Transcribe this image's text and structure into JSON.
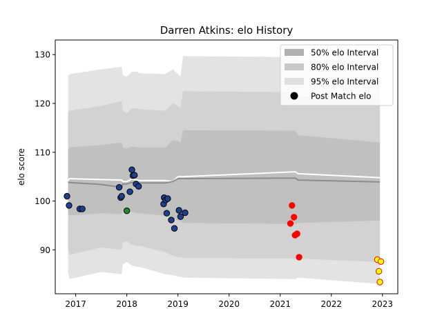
{
  "chart_data": {
    "type": "scatter",
    "title": "Darren Atkins: elo History",
    "xlabel": "",
    "ylabel": "elo score",
    "xlim": [
      2016.6,
      2023.3
    ],
    "ylim": [
      81,
      133
    ],
    "xticks": [
      {
        "value": 2017,
        "label": "2017"
      },
      {
        "value": 2018,
        "label": "2018"
      },
      {
        "value": 2019,
        "label": "2019"
      },
      {
        "value": 2020,
        "label": "2020"
      },
      {
        "value": 2021,
        "label": "2021"
      },
      {
        "value": 2022,
        "label": "2022"
      },
      {
        "value": 2023,
        "label": "2023"
      }
    ],
    "yticks": [
      {
        "value": 90,
        "label": "90"
      },
      {
        "value": 100,
        "label": "100"
      },
      {
        "value": 110,
        "label": "110"
      },
      {
        "value": 120,
        "label": "120"
      },
      {
        "value": 130,
        "label": "130"
      }
    ],
    "grid": false,
    "legend_position": "top-right",
    "legend": [
      {
        "label": "50% elo Interval",
        "kind": "patch",
        "color": "#b0b0b0"
      },
      {
        "label": "80% elo Interval",
        "kind": "patch",
        "color": "#c8c8c8"
      },
      {
        "label": "95% elo Interval",
        "kind": "patch",
        "color": "#e0e0e0"
      },
      {
        "label": "Post Match elo",
        "kind": "marker",
        "color": "#000000"
      }
    ],
    "bands": [
      {
        "name": "95% elo Interval",
        "color": "#e3e3e3",
        "x": [
          2016.85,
          2016.88,
          2017.5,
          2017.9,
          2017.92,
          2018.0,
          2018.1,
          2018.2,
          2018.25,
          2018.75,
          2018.9,
          2019.0,
          2019.05,
          2019.1,
          2021.3,
          2021.35,
          2022.95
        ],
        "upper": [
          125.5,
          126.0,
          127.0,
          127.5,
          125.8,
          125.5,
          126.5,
          126.5,
          126.2,
          126.0,
          127.0,
          126.0,
          125.6,
          129.7,
          129.5,
          129.0,
          128.5
        ],
        "lower": [
          85.5,
          84.0,
          85.5,
          85.0,
          87.0,
          87.5,
          86.8,
          86.5,
          86.5,
          85.0,
          84.8,
          84.5,
          84.5,
          84.3,
          84.0,
          84.3,
          83.0
        ]
      },
      {
        "name": "80% elo Interval",
        "color": "#d2d2d2",
        "x": [
          2016.85,
          2016.88,
          2017.5,
          2017.9,
          2017.92,
          2018.0,
          2018.1,
          2018.2,
          2018.25,
          2018.75,
          2018.9,
          2019.0,
          2019.05,
          2019.1,
          2021.3,
          2021.35,
          2022.95
        ],
        "upper": [
          118.0,
          118.5,
          119.5,
          120.5,
          118.5,
          118.0,
          119.0,
          119.0,
          118.8,
          118.5,
          120.0,
          119.5,
          119.2,
          122.5,
          122.3,
          121.5,
          121.0
        ],
        "lower": [
          90.5,
          89.0,
          90.5,
          90.0,
          91.5,
          91.8,
          91.0,
          90.8,
          90.8,
          89.5,
          88.8,
          88.5,
          88.5,
          88.3,
          88.2,
          88.2,
          87.5
        ]
      },
      {
        "name": "50% elo Interval",
        "color": "#c0c0c0",
        "x": [
          2016.85,
          2016.88,
          2017.5,
          2017.9,
          2017.92,
          2018.0,
          2018.1,
          2018.2,
          2018.25,
          2018.75,
          2018.9,
          2019.0,
          2019.05,
          2019.1,
          2021.3,
          2021.35,
          2022.95
        ],
        "upper": [
          110.5,
          111.0,
          111.5,
          112.0,
          111.0,
          110.8,
          111.2,
          111.0,
          111.0,
          111.0,
          112.5,
          112.3,
          112.0,
          114.5,
          114.4,
          113.5,
          112.0
        ],
        "lower": [
          97.5,
          97.0,
          97.5,
          97.3,
          98.0,
          98.0,
          97.8,
          97.5,
          97.5,
          97.0,
          96.5,
          96.0,
          96.0,
          95.5,
          95.3,
          95.5,
          96.0
        ]
      }
    ],
    "lines": [
      {
        "name": "mean",
        "color": "#ffffff",
        "x": [
          2016.85,
          2016.88,
          2017.5,
          2017.9,
          2017.92,
          2018.0,
          2018.1,
          2018.2,
          2018.25,
          2018.75,
          2018.9,
          2019.0,
          2019.05,
          2019.1,
          2021.3,
          2021.35,
          2022.95
        ],
        "y": [
          104.2,
          104.6,
          104.4,
          104.3,
          104.0,
          104.0,
          104.5,
          104.3,
          104.2,
          104.2,
          104.0,
          105.0,
          105.0,
          105.0,
          106.0,
          105.6,
          104.8
        ]
      },
      {
        "name": "median",
        "color": "#8c8c8c",
        "x": [
          2016.85,
          2016.88,
          2017.5,
          2017.9,
          2017.92,
          2018.0,
          2018.1,
          2018.2,
          2018.25,
          2018.75,
          2018.9,
          2019.0,
          2019.05,
          2019.1,
          2021.3,
          2021.35,
          2022.95
        ],
        "y": [
          103.8,
          103.8,
          103.4,
          102.8,
          103.5,
          103.5,
          103.8,
          103.7,
          103.7,
          103.7,
          104.0,
          104.6,
          104.6,
          104.6,
          104.7,
          104.3,
          103.9
        ]
      }
    ],
    "points": [
      {
        "x": 2016.83,
        "y": 101.0,
        "fill": "#1f3f8f",
        "stroke": "#000000"
      },
      {
        "x": 2016.87,
        "y": 99.1,
        "fill": "#1f3f8f",
        "stroke": "#000000"
      },
      {
        "x": 2017.08,
        "y": 98.4,
        "fill": "#1f3f8f",
        "stroke": "#000000"
      },
      {
        "x": 2017.13,
        "y": 98.4,
        "fill": "#1f3f8f",
        "stroke": "#000000"
      },
      {
        "x": 2017.85,
        "y": 102.8,
        "fill": "#1f3f8f",
        "stroke": "#000000"
      },
      {
        "x": 2017.88,
        "y": 100.7,
        "fill": "#1f3f8f",
        "stroke": "#000000"
      },
      {
        "x": 2017.9,
        "y": 101.0,
        "fill": "#1f3f8f",
        "stroke": "#000000"
      },
      {
        "x": 2018.0,
        "y": 98.0,
        "fill": "#228b22",
        "stroke": "#000000"
      },
      {
        "x": 2018.06,
        "y": 101.9,
        "fill": "#1f3f8f",
        "stroke": "#000000"
      },
      {
        "x": 2018.1,
        "y": 106.4,
        "fill": "#1f3f8f",
        "stroke": "#000000"
      },
      {
        "x": 2018.12,
        "y": 105.2,
        "fill": "#1f3f8f",
        "stroke": "#000000"
      },
      {
        "x": 2018.15,
        "y": 105.3,
        "fill": "#1f3f8f",
        "stroke": "#000000"
      },
      {
        "x": 2018.18,
        "y": 103.5,
        "fill": "#1f3f8f",
        "stroke": "#000000"
      },
      {
        "x": 2018.23,
        "y": 103.0,
        "fill": "#1f3f8f",
        "stroke": "#000000"
      },
      {
        "x": 2018.72,
        "y": 99.4,
        "fill": "#1f3f8f",
        "stroke": "#000000"
      },
      {
        "x": 2018.73,
        "y": 100.7,
        "fill": "#1f3f8f",
        "stroke": "#000000"
      },
      {
        "x": 2018.76,
        "y": 100.2,
        "fill": "#1f3f8f",
        "stroke": "#000000"
      },
      {
        "x": 2018.8,
        "y": 100.5,
        "fill": "#1f3f8f",
        "stroke": "#000000"
      },
      {
        "x": 2018.78,
        "y": 97.5,
        "fill": "#1f3f8f",
        "stroke": "#000000"
      },
      {
        "x": 2018.87,
        "y": 96.1,
        "fill": "#1f3f8f",
        "stroke": "#000000"
      },
      {
        "x": 2018.93,
        "y": 94.4,
        "fill": "#1f3f8f",
        "stroke": "#000000"
      },
      {
        "x": 2019.02,
        "y": 98.1,
        "fill": "#1f3f8f",
        "stroke": "#000000"
      },
      {
        "x": 2019.05,
        "y": 96.8,
        "fill": "#1f3f8f",
        "stroke": "#000000"
      },
      {
        "x": 2019.14,
        "y": 97.6,
        "fill": "#1f3f8f",
        "stroke": "#000000"
      },
      {
        "x": 2021.23,
        "y": 99.1,
        "fill": "#ff0000",
        "stroke": "#ff0000"
      },
      {
        "x": 2021.2,
        "y": 95.4,
        "fill": "#ff0000",
        "stroke": "#ff0000"
      },
      {
        "x": 2021.27,
        "y": 96.7,
        "fill": "#ff0000",
        "stroke": "#ff0000"
      },
      {
        "x": 2021.29,
        "y": 93.0,
        "fill": "#ff0000",
        "stroke": "#ff0000"
      },
      {
        "x": 2021.33,
        "y": 93.3,
        "fill": "#ff0000",
        "stroke": "#ff0000"
      },
      {
        "x": 2021.37,
        "y": 88.5,
        "fill": "#ff0000",
        "stroke": "#ff0000"
      },
      {
        "x": 2022.9,
        "y": 88.0,
        "fill": "#ffff00",
        "stroke": "#ff0000"
      },
      {
        "x": 2022.97,
        "y": 87.6,
        "fill": "#ffff00",
        "stroke": "#ff0000"
      },
      {
        "x": 2022.93,
        "y": 85.6,
        "fill": "#ffff00",
        "stroke": "#ff0000"
      },
      {
        "x": 2022.95,
        "y": 83.4,
        "fill": "#ffff00",
        "stroke": "#ff0000"
      }
    ]
  }
}
